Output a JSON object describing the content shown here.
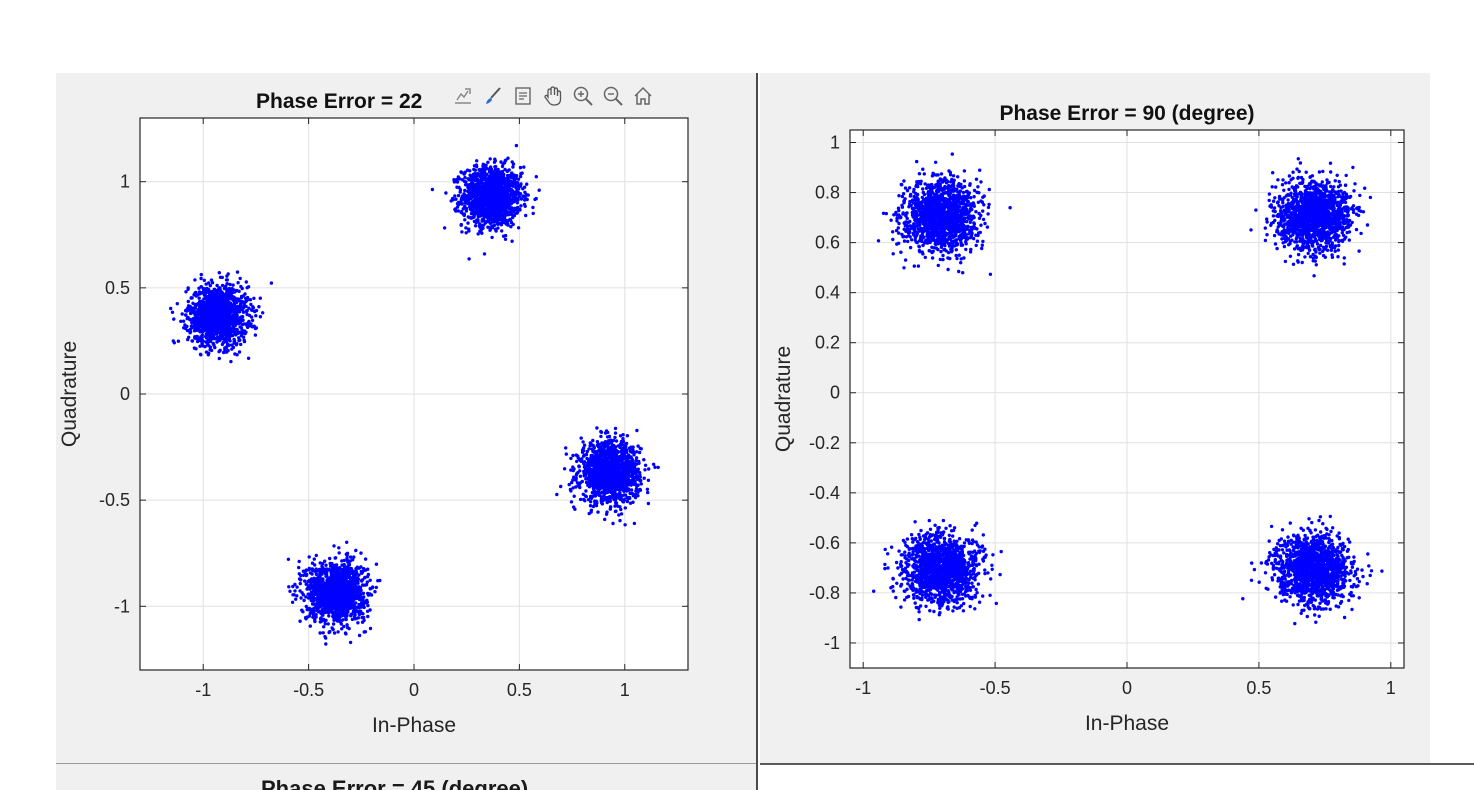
{
  "figures": [
    {
      "title": "Phase Error = 22",
      "xlabel": "In-Phase",
      "ylabel": "Quadrature"
    },
    {
      "title": "Phase Error = 90 (degree)",
      "xlabel": "In-Phase",
      "ylabel": "Quadrature"
    }
  ],
  "bottom_partial_title": "Phase Error = 45 (degree)",
  "toolbar": {
    "icons": [
      "export-icon",
      "brush-icon",
      "data-tips-icon",
      "pan-icon",
      "zoom-in-icon",
      "zoom-out-icon",
      "home-icon"
    ]
  },
  "chart_data": [
    {
      "type": "scatter",
      "title": "Phase Error = 22",
      "xlabel": "In-Phase",
      "ylabel": "Quadrature",
      "xlim": [
        -1.3,
        1.3
      ],
      "ylim": [
        -1.3,
        1.3
      ],
      "xticks": [
        -1,
        -0.5,
        0,
        0.5,
        1
      ],
      "xtick_labels": [
        "-1",
        "-0.5",
        "0",
        "0.5",
        "1"
      ],
      "yticks": [
        -1,
        -0.5,
        0,
        0.5,
        1
      ],
      "ytick_labels": [
        "-1",
        "-0.5",
        "0",
        "0.5",
        "1"
      ],
      "grid": true,
      "marker_color": "#0000ff",
      "clusters": [
        {
          "center": [
            0.37,
            0.93
          ],
          "spread": 0.07
        },
        {
          "center": [
            -0.93,
            0.37
          ],
          "spread": 0.07
        },
        {
          "center": [
            0.93,
            -0.37
          ],
          "spread": 0.07
        },
        {
          "center": [
            -0.37,
            -0.93
          ],
          "spread": 0.07
        }
      ]
    },
    {
      "type": "scatter",
      "title": "Phase Error = 90 (degree)",
      "xlabel": "In-Phase",
      "ylabel": "Quadrature",
      "xlim": [
        -1.05,
        1.05
      ],
      "ylim": [
        -1.1,
        1.05
      ],
      "xticks": [
        -1,
        -0.5,
        0,
        0.5,
        1
      ],
      "xtick_labels": [
        "-1",
        "-0.5",
        "0",
        "0.5",
        "1"
      ],
      "yticks": [
        -1,
        -0.8,
        -0.6,
        -0.4,
        -0.2,
        0,
        0.2,
        0.4,
        0.6,
        0.8,
        1
      ],
      "ytick_labels": [
        "-1",
        "-0.8",
        "-0.6",
        "-0.4",
        "-0.2",
        "0",
        "0.2",
        "0.4",
        "0.6",
        "0.8",
        "1"
      ],
      "grid": true,
      "marker_color": "#0000ff",
      "clusters": [
        {
          "center": [
            -0.707,
            0.707
          ],
          "spread": 0.07
        },
        {
          "center": [
            0.707,
            0.707
          ],
          "spread": 0.07
        },
        {
          "center": [
            -0.707,
            -0.707
          ],
          "spread": 0.07
        },
        {
          "center": [
            0.707,
            -0.707
          ],
          "spread": 0.07
        }
      ]
    }
  ]
}
